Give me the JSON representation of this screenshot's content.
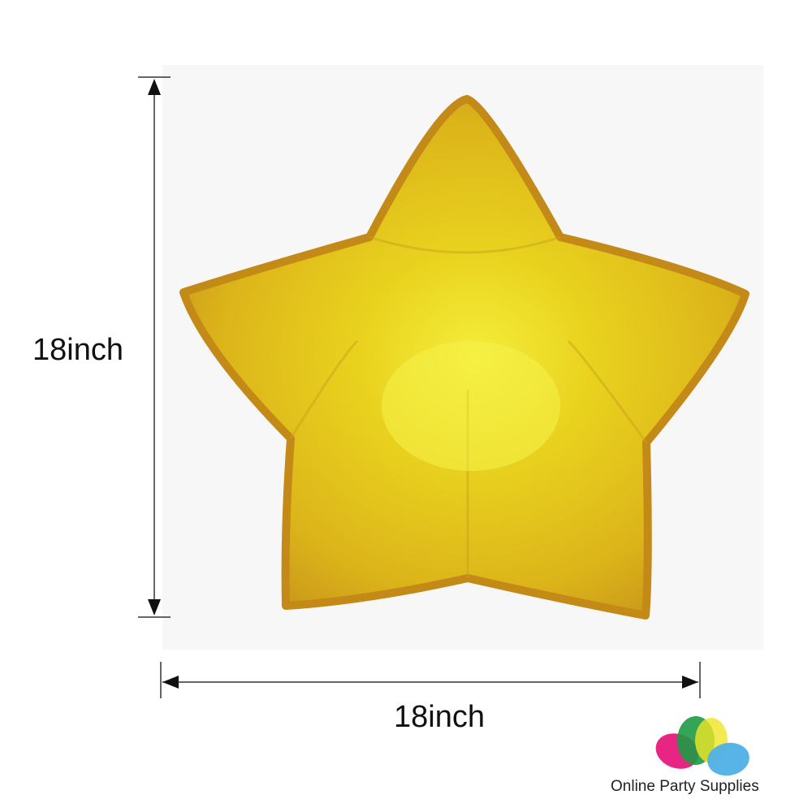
{
  "product": {
    "height_label": "18inch",
    "width_label": "18inch",
    "balloon_color": "#e8c21a"
  },
  "brand": {
    "name": "Online Party Supplies",
    "logo_colors": [
      "#e8197d",
      "#1e9a45",
      "#f0e525",
      "#4fb0e6"
    ]
  }
}
